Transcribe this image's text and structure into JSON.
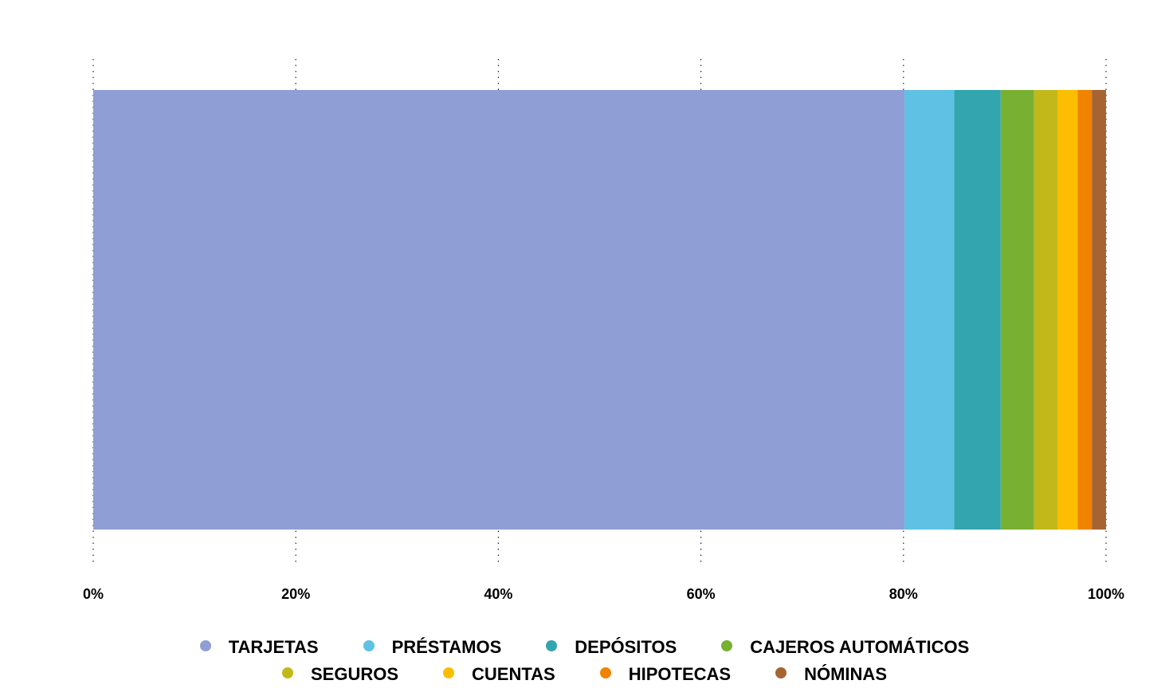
{
  "chart_data": {
    "type": "bar",
    "orientation": "horizontal",
    "stacked": "percent",
    "title": "",
    "xlabel": "",
    "ylabel": "",
    "xlim": [
      0,
      100
    ],
    "x_ticks": [
      "0%",
      "20%",
      "40%",
      "60%",
      "80%",
      "100%"
    ],
    "x_tick_values": [
      0,
      20,
      40,
      60,
      80,
      100
    ],
    "grid": true,
    "legend_position": "bottom",
    "series": [
      {
        "name": "TARJETAS",
        "value": 80.1,
        "color": "#8f9fd5"
      },
      {
        "name": "PRÉSTAMOS",
        "value": 4.9,
        "color": "#5fc1e3"
      },
      {
        "name": "DEPÓSITOS",
        "value": 4.6,
        "color": "#33a5ae"
      },
      {
        "name": "CAJEROS AUTOMÁTICOS",
        "value": 3.3,
        "color": "#78b032"
      },
      {
        "name": "SEGUROS",
        "value": 2.3,
        "color": "#c2b819"
      },
      {
        "name": "CUENTAS",
        "value": 2.0,
        "color": "#fbbe00"
      },
      {
        "name": "HIPOTECAS",
        "value": 1.4,
        "color": "#f08300"
      },
      {
        "name": "NÓMINAS",
        "value": 1.4,
        "color": "#a66433"
      }
    ]
  }
}
